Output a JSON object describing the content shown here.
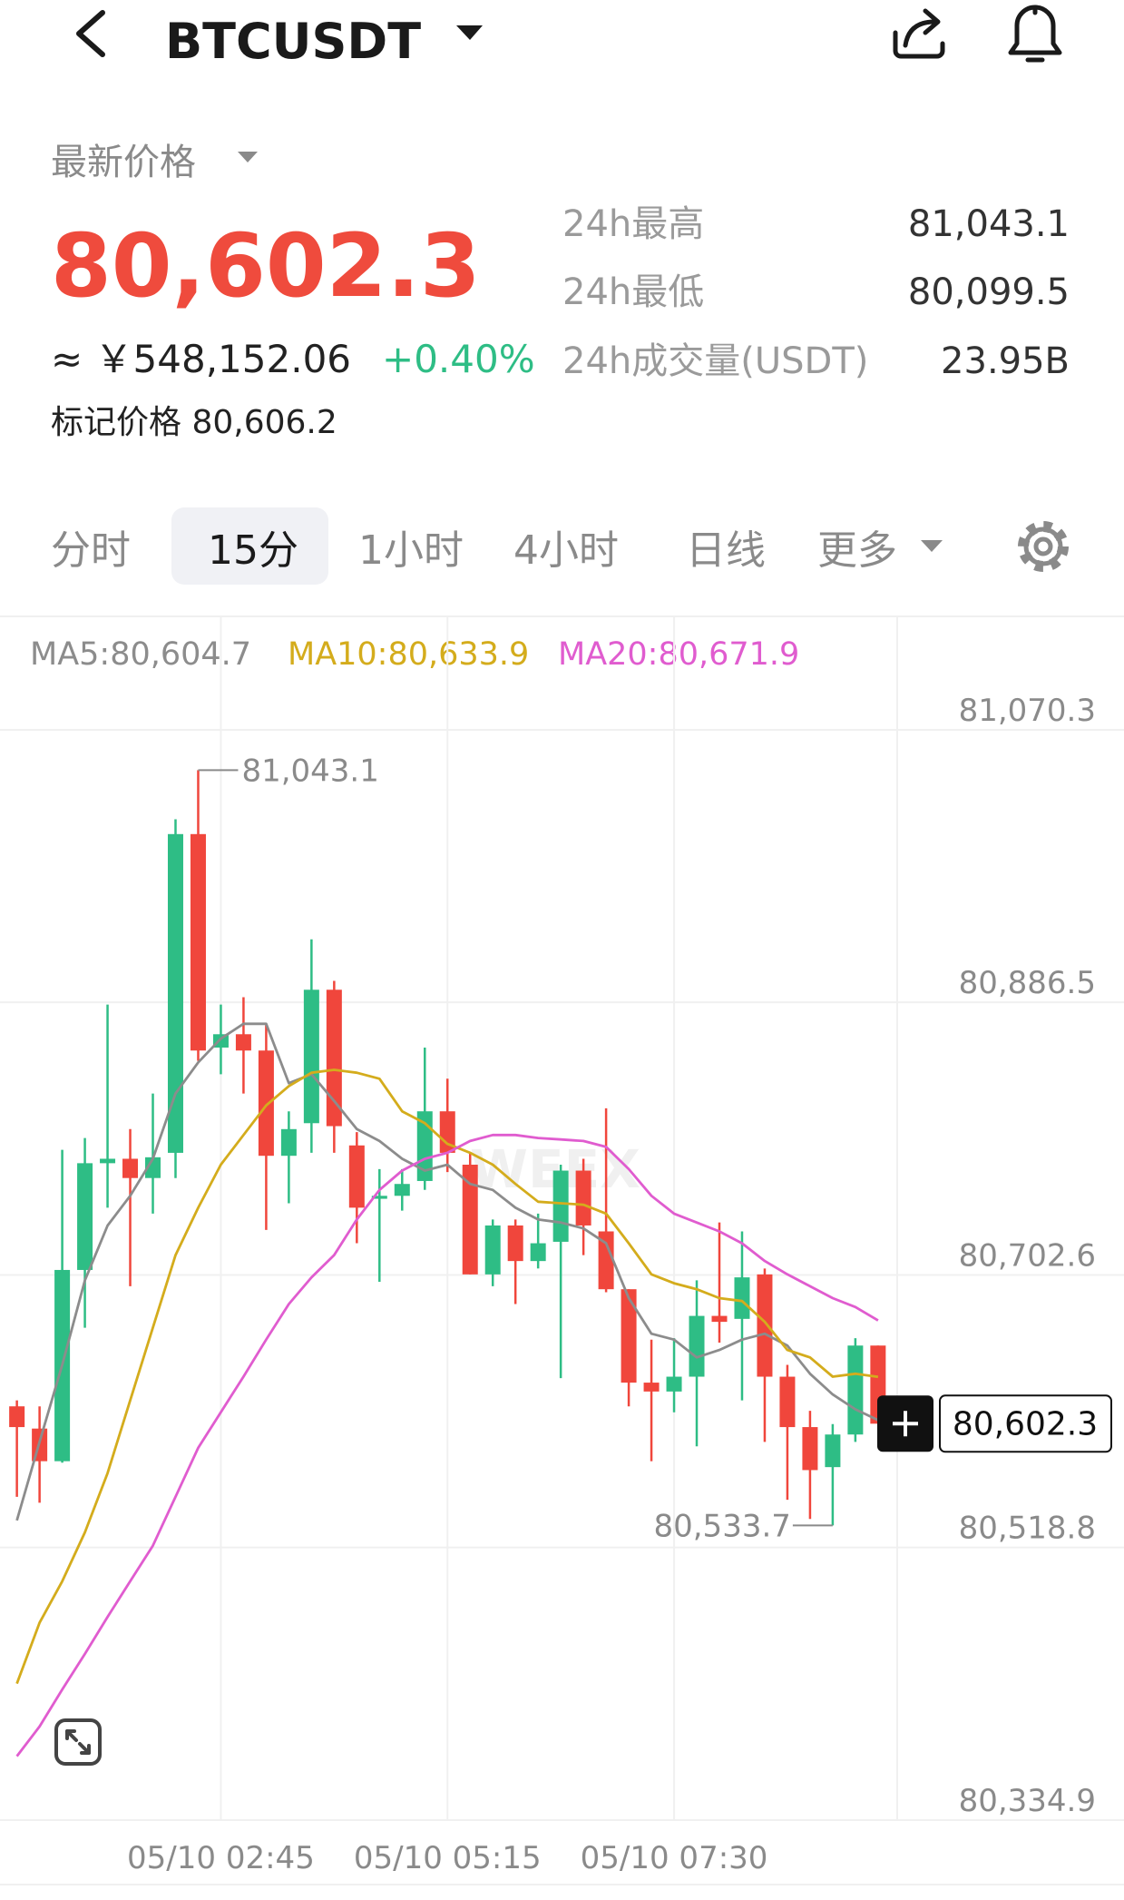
{
  "header": {
    "symbol": "BTCUSDT"
  },
  "ticker": {
    "price_label": "最新价格",
    "price": "80,602.3",
    "cny": "≈ ￥548,152.06",
    "change": "+0.40%",
    "mark_price": "标记价格 80,606.2",
    "stats": [
      {
        "label": "24h最高",
        "value": "81,043.1"
      },
      {
        "label": "24h最低",
        "value": "80,099.5"
      },
      {
        "label": "24h成交量(USDT)",
        "value": "23.95B"
      }
    ]
  },
  "tabs": [
    "分时",
    "15分",
    "1小时",
    "4小时",
    "日线",
    "更多"
  ],
  "watermark": "WEEX",
  "chart_data": {
    "type": "candlestick",
    "categories": [
      null,
      null,
      null,
      null,
      null,
      null,
      null,
      null,
      null,
      "05/10 02:45",
      null,
      null,
      null,
      null,
      null,
      null,
      null,
      null,
      null,
      "05/10 05:15",
      null,
      null,
      null,
      null,
      null,
      null,
      null,
      null,
      null,
      "05/10 07:30",
      null,
      null,
      null,
      null,
      null,
      null,
      null,
      null,
      null
    ],
    "open": [
      80614,
      80599,
      80577,
      80706,
      80778,
      80781,
      80768,
      80785,
      81000,
      80856,
      80865,
      80854,
      80783,
      80805,
      80895,
      80790,
      80754,
      80756,
      80766,
      80813,
      80777,
      80703,
      80736,
      80712,
      80725,
      80773,
      80732,
      80693,
      80630,
      80624,
      80634,
      80675,
      80673,
      80703,
      80634,
      80600,
      80573,
      80595,
      80655
    ],
    "high": [
      80618,
      80614,
      80787,
      80795,
      80885,
      80801,
      80825,
      81010,
      81043.1,
      80885,
      80890,
      80872,
      80813,
      80929,
      80901,
      80799,
      80774,
      80774,
      80856,
      80835,
      80785,
      80740,
      80740,
      80744,
      80777,
      80781,
      80815,
      80693,
      80659,
      80660,
      80699,
      80738,
      80732,
      80707,
      80642,
      80611,
      80602,
      80660,
      80655
    ],
    "low": [
      80553,
      80549,
      80576,
      80667,
      80748,
      80695,
      80744,
      80768,
      80847,
      80838,
      80825,
      80733,
      80751,
      80785,
      80785,
      80724,
      80698,
      80746,
      80760,
      80772,
      80703,
      80695,
      80683,
      80707,
      80633,
      80716,
      80691,
      80614,
      80577,
      80610,
      80587,
      80657,
      80618,
      80590,
      80551,
      80538,
      80533.7,
      80590,
      80602.3
    ],
    "close": [
      80600,
      80577,
      80706,
      80778,
      80781,
      80768,
      80782,
      81000,
      80854,
      80865,
      80854,
      80783,
      80801,
      80895,
      80803,
      80748,
      80756,
      80764,
      80813,
      80785,
      80703,
      80736,
      80712,
      80724,
      80773,
      80736,
      80693,
      80630,
      80624,
      80634,
      80675,
      80671,
      80701,
      80634,
      80600,
      80571,
      80595,
      80655,
      80602.3
    ],
    "up_color": "#2ebd85",
    "down_color": "#f0463c",
    "series": [
      {
        "name": "MA5:80,604.7",
        "color": "#8c8c8c",
        "values": [
          80537,
          80590,
          80642,
          80699,
          80736,
          80756,
          80781,
          80825,
          80846,
          80862,
          80872,
          80872,
          80832,
          80838,
          80820,
          80801,
          80793,
          80781,
          80773,
          80777,
          80764,
          80760,
          80748,
          80740,
          80738,
          80734,
          80724,
          80687,
          80663,
          80659,
          80647,
          80652,
          80659,
          80663,
          80655,
          80636,
          80622,
          80612,
          80604.7
        ]
      },
      {
        "name": "MA10:80,633.9",
        "color": "#d4ac1c",
        "values": [
          80427,
          80468,
          80496,
          80529,
          80569,
          80618,
          80667,
          80716,
          80748,
          80777,
          80797,
          80817,
          80830,
          80839,
          80841,
          80839,
          80835,
          80813,
          80805,
          80791,
          80785,
          80777,
          80764,
          80752,
          80751,
          80750,
          80744,
          80724,
          80703,
          80697,
          80693,
          80687,
          80685,
          80671,
          80652,
          80647,
          80634,
          80636,
          80633.9
        ]
      },
      {
        "name": "MA20:80,671.9",
        "color": "#e05ccf",
        "values": [
          80378,
          80398,
          80423,
          80447,
          80472,
          80496,
          80520,
          80553,
          80586,
          80610,
          80634,
          80659,
          80683,
          80701,
          80716,
          80740,
          80760,
          80773,
          80781,
          80785,
          80793,
          80797,
          80797,
          80795,
          80794,
          80793,
          80789,
          80774,
          80756,
          80744,
          80738,
          80732,
          80724,
          80712,
          80703,
          80695,
          80687,
          80681,
          80671.9
        ]
      }
    ],
    "ylim": [
      80334.9,
      81070.3
    ],
    "yticks": [
      {
        "value": 81070.3,
        "label": "81,070.3"
      },
      {
        "value": 80886.5,
        "label": "80,886.5"
      },
      {
        "value": 80702.6,
        "label": "80,702.6"
      },
      {
        "value": 80518.8,
        "label": "80,518.8"
      },
      {
        "value": 80334.9,
        "label": "80,334.9"
      }
    ],
    "grid": true,
    "high_label": "81,043.1",
    "low_label": "80,533.7",
    "last_label": "80,602.3"
  }
}
